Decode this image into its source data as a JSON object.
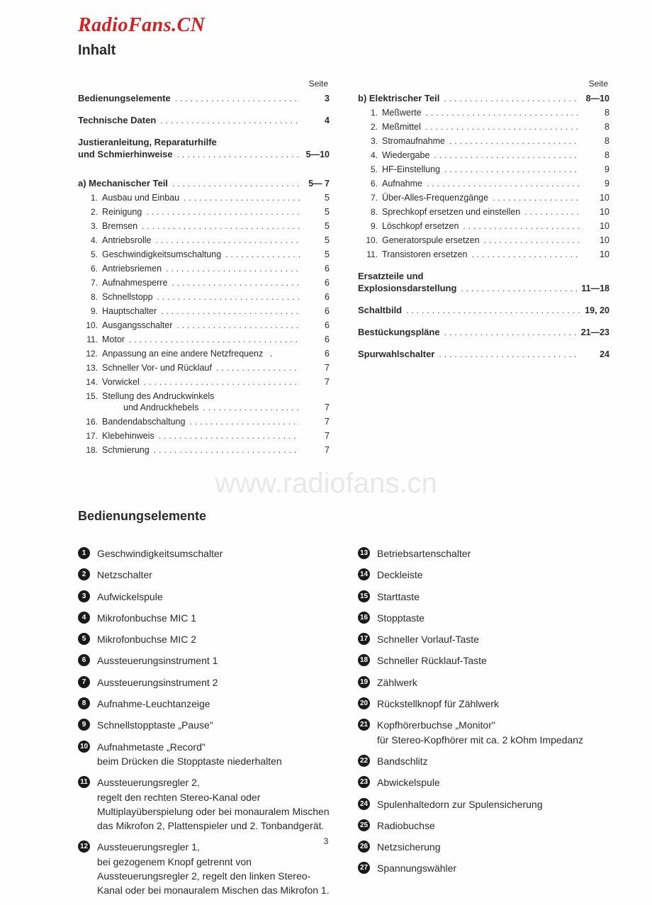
{
  "watermark_top": "RadioFans.CN",
  "watermark_mid": "www.radiofans.cn",
  "heading_toc": "Inhalt",
  "seite_label": "Seite",
  "heading_controls": "Bedienungselemente",
  "page_number": "3",
  "toc_left_top": [
    {
      "label": "Bedienungselemente",
      "page": "3",
      "bold": true
    },
    {
      "label": "Technische Daten",
      "page": "4",
      "bold": true
    },
    {
      "label": "Justieranleitung, Reparaturhilfe",
      "cont": true,
      "bold": true
    },
    {
      "label": "und Schmierhinweise",
      "page": "5—10",
      "bold": true
    }
  ],
  "toc_left_a": {
    "label": "a) Mechanischer Teil",
    "page": "5— 7"
  },
  "toc_left_items": [
    {
      "n": "1.",
      "label": "Ausbau und Einbau",
      "page": "5"
    },
    {
      "n": "2.",
      "label": "Reinigung",
      "page": "5"
    },
    {
      "n": "3.",
      "label": "Bremsen",
      "page": "5"
    },
    {
      "n": "4.",
      "label": "Antriebsrolle",
      "page": "5"
    },
    {
      "n": "5.",
      "label": "Geschwindigkeitsumschaltung",
      "page": "5"
    },
    {
      "n": "6.",
      "label": "Antriebsriemen",
      "page": "6"
    },
    {
      "n": "7.",
      "label": "Aufnahmesperre",
      "page": "6"
    },
    {
      "n": "8.",
      "label": "Schnellstopp",
      "page": "6"
    },
    {
      "n": "9.",
      "label": "Hauptschalter",
      "page": "6"
    },
    {
      "n": "10.",
      "label": "Ausgangsschalter",
      "page": "6"
    },
    {
      "n": "11.",
      "label": "Motor",
      "page": "6"
    },
    {
      "n": "12.",
      "label": "Anpassung an eine andere Netzfrequenz",
      "page": "6",
      "short": true
    },
    {
      "n": "13.",
      "label": "Schneller Vor- und Rücklauf",
      "page": "7"
    },
    {
      "n": "14.",
      "label": "Vorwickel",
      "page": "7"
    },
    {
      "n": "15.",
      "label": "Stellung des Andruckwinkels",
      "cont": true
    },
    {
      "n": "",
      "label": "und Andruckhebels",
      "page": "7",
      "indent": true
    },
    {
      "n": "16.",
      "label": "Bandendabschaltung",
      "page": "7"
    },
    {
      "n": "17.",
      "label": "Klebehinweis",
      "page": "7"
    },
    {
      "n": "18.",
      "label": "Schmierung",
      "page": "7"
    }
  ],
  "toc_right_b": {
    "label": "b) Elektrischer Teil",
    "page": "8—10"
  },
  "toc_right_items": [
    {
      "n": "1.",
      "label": "Meßwerte",
      "page": "8"
    },
    {
      "n": "2.",
      "label": "Meßmittel",
      "page": "8"
    },
    {
      "n": "3.",
      "label": "Stromaufnahme",
      "page": "8"
    },
    {
      "n": "4.",
      "label": "Wiedergabe",
      "page": "8"
    },
    {
      "n": "5.",
      "label": "HF-Einstellung",
      "page": "9"
    },
    {
      "n": "6.",
      "label": "Aufnahme",
      "page": "9"
    },
    {
      "n": "7.",
      "label": "Über-Alles-Frequenzgänge",
      "page": "10"
    },
    {
      "n": "8.",
      "label": "Sprechkopf ersetzen und einstellen",
      "page": "10"
    },
    {
      "n": "9.",
      "label": "Löschkopf ersetzen",
      "page": "10"
    },
    {
      "n": "10.",
      "label": "Generatorspule ersetzen",
      "page": "10"
    },
    {
      "n": "11.",
      "label": "Transistoren ersetzen",
      "page": "10"
    }
  ],
  "toc_right_bottom": [
    {
      "label": "Ersatzteile und",
      "cont": true,
      "bold": true
    },
    {
      "label": "Explosionsdarstellung",
      "page": "11—18",
      "bold": true
    },
    {
      "label": "Schaltbild",
      "page": "19, 20",
      "bold": true
    },
    {
      "label": "Bestückungspläne",
      "page": "21—23",
      "bold": true
    },
    {
      "label": "Spurwahlschalter",
      "page": "24",
      "bold": true
    }
  ],
  "controls_left": [
    {
      "n": "1",
      "text": "Geschwindigkeitsumschalter"
    },
    {
      "n": "2",
      "text": "Netzschalter"
    },
    {
      "n": "3",
      "text": "Aufwickelspule"
    },
    {
      "n": "4",
      "text": "Mikrofonbuchse MIC 1"
    },
    {
      "n": "5",
      "text": "Mikrofonbuchse MIC 2"
    },
    {
      "n": "6",
      "text": "Aussteuerungsinstrument 1"
    },
    {
      "n": "7",
      "text": "Aussteuerungsinstrument 2"
    },
    {
      "n": "8",
      "text": "Aufnahme-Leuchtanzeige"
    },
    {
      "n": "9",
      "text": "Schnellstopptaste „Pause\""
    },
    {
      "n": "10",
      "text": "Aufnahmetaste „Record\"\nbeim Drücken die Stopptaste niederhalten"
    },
    {
      "n": "11",
      "text": "Aussteuerungsregler 2,\nregelt den rechten Stereo-Kanal oder Multiplayüberspielung oder bei monauralem Mischen das Mikrofon 2, Plattenspieler und 2. Tonbandgerät."
    },
    {
      "n": "12",
      "text": "Aussteuerungsregler 1,\nbei gezogenem Knopf getrennt von Aussteuerungsregler 2, regelt den linken Stereo-Kanal oder bei monauralem Mischen das Mikrofon 1."
    }
  ],
  "controls_right": [
    {
      "n": "13",
      "text": "Betriebsartenschalter"
    },
    {
      "n": "14",
      "text": "Deckleiste"
    },
    {
      "n": "15",
      "text": "Starttaste"
    },
    {
      "n": "16",
      "text": "Stopptaste"
    },
    {
      "n": "17",
      "text": "Schneller Vorlauf-Taste"
    },
    {
      "n": "18",
      "text": "Schneller Rücklauf-Taste"
    },
    {
      "n": "19",
      "text": "Zählwerk"
    },
    {
      "n": "20",
      "text": "Rückstellknopf für Zählwerk"
    },
    {
      "n": "21",
      "text": "Kopfhörerbuchse „Monitor\"\nfür Stereo-Kopfhörer mit ca. 2 kOhm Impedanz"
    },
    {
      "n": "22",
      "text": "Bandschlitz"
    },
    {
      "n": "23",
      "text": "Abwickelspule"
    },
    {
      "n": "24",
      "text": "Spulenhaltedorn zur Spulensicherung"
    },
    {
      "n": "25",
      "text": "Radiobuchse"
    },
    {
      "n": "26",
      "text": "Netzsicherung"
    },
    {
      "n": "27",
      "text": "Spannungswähler"
    }
  ]
}
